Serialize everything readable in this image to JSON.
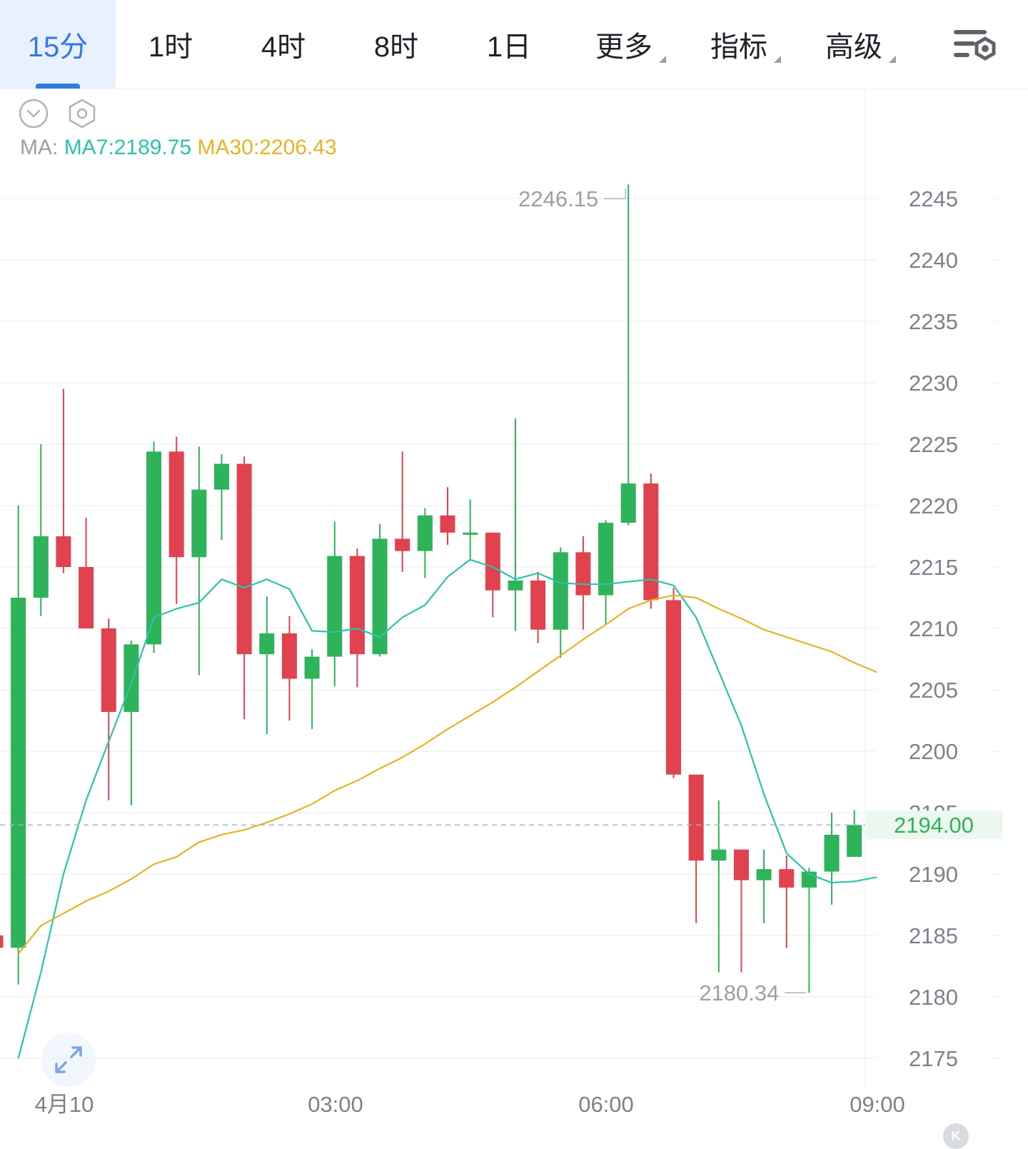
{
  "tabs": [
    {
      "label": "15分",
      "active": true
    },
    {
      "label": "1时",
      "active": false
    },
    {
      "label": "4时",
      "active": false
    },
    {
      "label": "8时",
      "active": false
    },
    {
      "label": "1日",
      "active": false
    },
    {
      "label": "更多",
      "active": false,
      "dropdown": true
    },
    {
      "label": "指标",
      "active": false,
      "dropdown": true
    },
    {
      "label": "高级",
      "active": false,
      "dropdown": true
    }
  ],
  "icons": {
    "settings": "chart-settings-icon",
    "collapse": "chevron-down-circle-icon",
    "hexagon": "hexagon-settings-icon",
    "expand": "expand-arrows-icon",
    "badge": "k-logo-icon"
  },
  "ma": {
    "prefix": "MA:",
    "ma7_label": "MA7:2189.75",
    "ma30_label": "MA30:2206.43"
  },
  "badge_text": "K",
  "colors": {
    "up": "#2eb35b",
    "down": "#e0424f",
    "ma7": "#2bc4aa",
    "ma30": "#e8b322",
    "accent": "#2f7be6",
    "last_price": "#2eb35b"
  },
  "chart_data": {
    "type": "candlestick",
    "interval": "15分",
    "ylim": [
      2172,
      2248
    ],
    "y_ticks": [
      "2245",
      "2240",
      "2235",
      "2230",
      "2225",
      "2220",
      "2215",
      "2210",
      "2205",
      "2200",
      "2195",
      "2190",
      "2185",
      "2180",
      "2175"
    ],
    "x_ticks": [
      "4月10",
      "03:00",
      "06:00",
      "09:00"
    ],
    "last_price": "2194.00",
    "max_label": "2246.15",
    "min_label": "2180.34",
    "candles": [
      {
        "o": 2185.0,
        "c": 2184.0,
        "h": 2186.0,
        "l": 2183.0
      },
      {
        "o": 2184.0,
        "c": 2212.5,
        "h": 2220.0,
        "l": 2181.0
      },
      {
        "o": 2212.5,
        "c": 2217.5,
        "h": 2225.0,
        "l": 2211.0
      },
      {
        "o": 2217.5,
        "c": 2215.0,
        "h": 2229.5,
        "l": 2214.5
      },
      {
        "o": 2215.0,
        "c": 2210.0,
        "h": 2219.0,
        "l": 2210.0
      },
      {
        "o": 2210.0,
        "c": 2203.2,
        "h": 2210.8,
        "l": 2196.0
      },
      {
        "o": 2203.2,
        "c": 2208.7,
        "h": 2209.0,
        "l": 2195.6
      },
      {
        "o": 2208.7,
        "c": 2224.4,
        "h": 2225.2,
        "l": 2208.0
      },
      {
        "o": 2224.4,
        "c": 2215.8,
        "h": 2225.6,
        "l": 2212.0
      },
      {
        "o": 2215.8,
        "c": 2221.3,
        "h": 2224.8,
        "l": 2206.2
      },
      {
        "o": 2221.3,
        "c": 2223.4,
        "h": 2224.2,
        "l": 2217.2
      },
      {
        "o": 2223.4,
        "c": 2207.9,
        "h": 2224.0,
        "l": 2202.6
      },
      {
        "o": 2207.9,
        "c": 2209.6,
        "h": 2212.6,
        "l": 2201.4
      },
      {
        "o": 2209.6,
        "c": 2205.9,
        "h": 2211.0,
        "l": 2202.5
      },
      {
        "o": 2205.9,
        "c": 2207.7,
        "h": 2208.3,
        "l": 2201.8
      },
      {
        "o": 2207.7,
        "c": 2215.9,
        "h": 2218.7,
        "l": 2205.3
      },
      {
        "o": 2215.9,
        "c": 2207.9,
        "h": 2216.5,
        "l": 2205.2
      },
      {
        "o": 2207.9,
        "c": 2217.3,
        "h": 2218.5,
        "l": 2207.7
      },
      {
        "o": 2217.3,
        "c": 2216.3,
        "h": 2224.4,
        "l": 2214.6
      },
      {
        "o": 2216.3,
        "c": 2219.2,
        "h": 2219.8,
        "l": 2214.1
      },
      {
        "o": 2219.2,
        "c": 2217.8,
        "h": 2221.5,
        "l": 2216.8
      },
      {
        "o": 2217.8,
        "c": 2217.8,
        "h": 2220.5,
        "l": 2215.5
      },
      {
        "o": 2217.8,
        "c": 2213.1,
        "h": 2217.8,
        "l": 2210.9
      },
      {
        "o": 2213.1,
        "c": 2213.9,
        "h": 2227.1,
        "l": 2209.8
      },
      {
        "o": 2213.9,
        "c": 2209.9,
        "h": 2214.6,
        "l": 2208.8
      },
      {
        "o": 2209.9,
        "c": 2216.2,
        "h": 2216.6,
        "l": 2207.6
      },
      {
        "o": 2216.2,
        "c": 2212.7,
        "h": 2217.5,
        "l": 2209.9
      },
      {
        "o": 2212.7,
        "c": 2218.6,
        "h": 2218.8,
        "l": 2210.3
      },
      {
        "o": 2218.6,
        "c": 2221.8,
        "h": 2246.15,
        "l": 2218.4
      },
      {
        "o": 2221.8,
        "c": 2212.3,
        "h": 2222.6,
        "l": 2211.6
      },
      {
        "o": 2212.3,
        "c": 2198.1,
        "h": 2213.3,
        "l": 2197.8
      },
      {
        "o": 2198.1,
        "c": 2191.1,
        "h": 2197.8,
        "l": 2186.0
      },
      {
        "o": 2191.1,
        "c": 2192.0,
        "h": 2196.0,
        "l": 2182.0
      },
      {
        "o": 2192.0,
        "c": 2189.5,
        "h": 2192.0,
        "l": 2182.0
      },
      {
        "o": 2189.5,
        "c": 2190.4,
        "h": 2192.0,
        "l": 2186.0
      },
      {
        "o": 2190.4,
        "c": 2188.9,
        "h": 2191.5,
        "l": 2184.0
      },
      {
        "o": 2188.9,
        "c": 2190.2,
        "h": 2190.5,
        "l": 2180.34
      },
      {
        "o": 2190.2,
        "c": 2193.2,
        "h": 2195.0,
        "l": 2187.5
      },
      {
        "o": 2191.4,
        "c": 2194.0,
        "h": 2195.2,
        "l": 2191.4
      }
    ],
    "series": [
      {
        "name": "MA7",
        "values": [
          2175.0,
          2182.0,
          2190.0,
          2196.0,
          2200.8,
          2205.5,
          2210.9,
          2211.6,
          2212.1,
          2214.0,
          2213.3,
          2214.0,
          2213.2,
          2209.8,
          2209.7,
          2210.0,
          2209.3,
          2210.9,
          2211.9,
          2214.2,
          2215.6,
          2215.0,
          2214.0,
          2214.5,
          2213.7,
          2213.6,
          2213.6,
          2213.8,
          2214.0,
          2213.5,
          2210.9,
          2206.5,
          2202.1,
          2196.5,
          2191.7,
          2190.0,
          2189.3,
          2189.4,
          2189.75
        ]
      },
      {
        "name": "MA30",
        "values": [
          2183.5,
          2185.8,
          2186.8,
          2187.8,
          2188.6,
          2189.6,
          2190.8,
          2191.4,
          2192.6,
          2193.2,
          2193.6,
          2194.2,
          2194.9,
          2195.7,
          2196.8,
          2197.6,
          2198.6,
          2199.5,
          2200.6,
          2201.8,
          2202.9,
          2204.0,
          2205.2,
          2206.5,
          2207.8,
          2209.1,
          2210.3,
          2211.6,
          2212.3,
          2212.7,
          2212.5,
          2211.6,
          2210.8,
          2209.9,
          2209.3,
          2208.7,
          2208.1,
          2207.2,
          2206.43
        ]
      }
    ]
  }
}
